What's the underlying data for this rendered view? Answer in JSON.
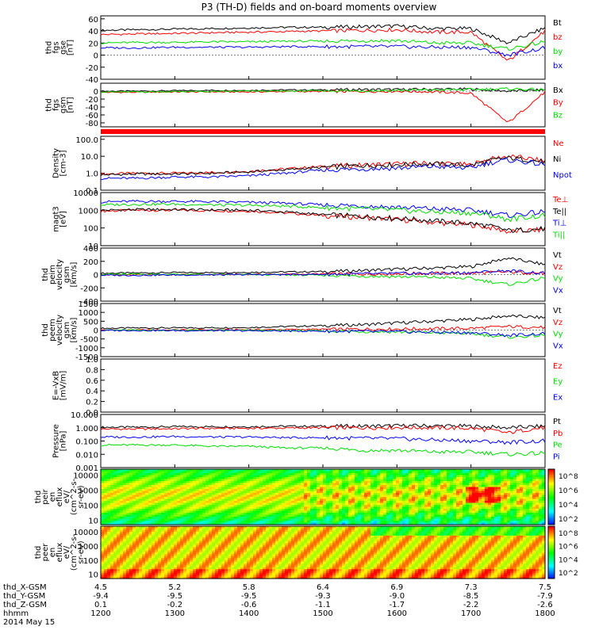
{
  "title": "P3 (TH-D) fields and on-board moments overview",
  "colors": {
    "black": "#000000",
    "red": "#ff0000",
    "green": "#00dd00",
    "blue": "#0000ff"
  },
  "chart_data": [
    {
      "type": "line",
      "panel": "fgs_gse",
      "ylabel_lines": [
        "thd",
        "fgs",
        "gse",
        "[nT]"
      ],
      "ylim": [
        -40,
        65
      ],
      "y_ticks": [
        "60",
        "40",
        "20",
        "0",
        "-20",
        "-40"
      ],
      "grid": false,
      "legend_placement": "right",
      "series": [
        {
          "name": "Bt",
          "color": "black",
          "values": [
            41,
            42,
            43,
            44,
            45,
            46,
            46,
            47,
            48,
            44,
            44,
            20,
            45
          ]
        },
        {
          "name": "bz",
          "color": "red",
          "values": [
            34,
            35,
            36,
            37,
            38,
            39,
            40,
            41,
            42,
            38,
            38,
            -10,
            40
          ]
        },
        {
          "name": "by",
          "color": "green",
          "values": [
            20,
            21,
            21,
            22,
            22,
            23,
            23,
            24,
            24,
            20,
            20,
            10,
            22
          ]
        },
        {
          "name": "bx",
          "color": "blue",
          "values": [
            12,
            12,
            13,
            13,
            13,
            14,
            14,
            14,
            14,
            13,
            13,
            0,
            12
          ]
        }
      ]
    },
    {
      "type": "line",
      "panel": "fgs_gsm",
      "ylabel_lines": [
        "thd",
        "fgs",
        "gsm",
        "[nT]"
      ],
      "ylim": [
        -90,
        20
      ],
      "y_ticks": [
        "0",
        "-20",
        "-40",
        "-60",
        "-80"
      ],
      "grid": false,
      "legend_placement": "right",
      "series": [
        {
          "name": "Bx",
          "color": "black",
          "values": [
            0,
            0,
            1,
            2,
            2,
            3,
            3,
            4,
            4,
            5,
            5,
            0,
            3
          ]
        },
        {
          "name": "By",
          "color": "red",
          "values": [
            -3,
            -3,
            -2,
            -2,
            -2,
            -1,
            -1,
            -1,
            0,
            -2,
            -5,
            -80,
            -2
          ]
        },
        {
          "name": "Bz",
          "color": "green",
          "values": [
            -2,
            -2,
            -1,
            -1,
            0,
            0,
            1,
            1,
            2,
            3,
            4,
            6,
            3
          ]
        }
      ]
    },
    {
      "type": "line",
      "panel": "density",
      "ylabel_lines": [
        "Density",
        "[cm-3]"
      ],
      "log_scale": true,
      "ylim": [
        0.1,
        150
      ],
      "y_ticks": [
        "100.0",
        "10.0",
        "1.0",
        "0.1"
      ],
      "grid": false,
      "legend_placement": "right",
      "series": [
        {
          "name": "Ne",
          "color": "red",
          "values": [
            0.9,
            1.0,
            1.0,
            1.1,
            1.3,
            1.8,
            2.5,
            3.0,
            3.5,
            4.0,
            3.0,
            10.0,
            5.0
          ]
        },
        {
          "name": "Ni",
          "color": "black",
          "values": [
            0.8,
            0.9,
            0.9,
            1.0,
            1.2,
            1.6,
            2.2,
            2.8,
            3.2,
            3.6,
            2.8,
            8.0,
            4.5
          ]
        },
        {
          "name": "Npot",
          "color": "blue",
          "values": [
            0.5,
            0.5,
            0.6,
            0.6,
            0.7,
            1.0,
            1.5,
            1.8,
            2.0,
            2.5,
            2.0,
            6.0,
            3.0
          ]
        }
      ]
    },
    {
      "type": "line",
      "panel": "temperature",
      "ylabel_lines": [
        "magt3",
        "[eV]"
      ],
      "log_scale": true,
      "ylim": [
        10,
        10000
      ],
      "y_ticks": [
        "10000",
        "1000",
        "100",
        "10"
      ],
      "grid": false,
      "legend_placement": "right",
      "series": [
        {
          "name": "Te⊥",
          "color": "red",
          "values": [
            900,
            1000,
            1000,
            950,
            900,
            700,
            500,
            400,
            300,
            200,
            150,
            60,
            80
          ]
        },
        {
          "name": "Te||",
          "color": "black",
          "values": [
            1000,
            1100,
            1100,
            1050,
            1000,
            800,
            550,
            450,
            350,
            250,
            180,
            70,
            90
          ]
        },
        {
          "name": "Ti⊥",
          "color": "blue",
          "values": [
            3000,
            3200,
            3200,
            3000,
            2800,
            2500,
            2000,
            1800,
            1500,
            1200,
            1000,
            500,
            800
          ]
        },
        {
          "name": "Ti||",
          "color": "green",
          "values": [
            2000,
            2200,
            2200,
            2000,
            1900,
            1700,
            1400,
            1200,
            1000,
            800,
            700,
            300,
            500
          ]
        }
      ]
    },
    {
      "type": "line",
      "panel": "peim_velocity",
      "ylabel_lines": [
        "thd",
        "peim",
        "velocity",
        "gsm",
        "[km/s]"
      ],
      "ylim": [
        -400,
        400
      ],
      "y_ticks": [
        "400",
        "200",
        "0",
        "-200",
        "-400"
      ],
      "grid": false,
      "legend_placement": "right",
      "series": [
        {
          "name": "Vt",
          "color": "black",
          "values": [
            20,
            25,
            30,
            30,
            35,
            40,
            45,
            60,
            80,
            100,
            120,
            250,
            150
          ]
        },
        {
          "name": "Vz",
          "color": "red",
          "values": [
            -5,
            -5,
            0,
            0,
            5,
            5,
            10,
            10,
            15,
            20,
            20,
            40,
            20
          ]
        },
        {
          "name": "Vy",
          "color": "green",
          "values": [
            5,
            5,
            5,
            0,
            0,
            -5,
            -10,
            -20,
            -30,
            -40,
            -60,
            -150,
            -50
          ]
        },
        {
          "name": "Vx",
          "color": "blue",
          "values": [
            -10,
            -10,
            -5,
            -5,
            0,
            0,
            5,
            10,
            15,
            20,
            30,
            60,
            20
          ]
        }
      ]
    },
    {
      "type": "line",
      "panel": "peem_velocity",
      "ylabel_lines": [
        "thd",
        "peem",
        "velocity",
        "gsm",
        "[km/s]"
      ],
      "ylim": [
        -1500,
        1500
      ],
      "y_ticks": [
        "1500",
        "1000",
        "500",
        "0",
        "-500",
        "-1000",
        "-1500"
      ],
      "grid": false,
      "legend_placement": "right",
      "series": [
        {
          "name": "Vt",
          "color": "black",
          "values": [
            100,
            120,
            120,
            130,
            150,
            200,
            250,
            300,
            400,
            500,
            600,
            800,
            700
          ]
        },
        {
          "name": "Vz",
          "color": "red",
          "values": [
            0,
            0,
            10,
            10,
            20,
            30,
            40,
            50,
            60,
            80,
            100,
            200,
            150
          ]
        },
        {
          "name": "Vy",
          "color": "green",
          "values": [
            0,
            -10,
            -10,
            -20,
            -20,
            -30,
            -50,
            -80,
            -100,
            -150,
            -200,
            -400,
            -300
          ]
        },
        {
          "name": "Vx",
          "color": "blue",
          "values": [
            -20,
            -20,
            -30,
            -30,
            -40,
            -50,
            -60,
            -80,
            -100,
            -120,
            -150,
            -300,
            -200
          ]
        }
      ]
    },
    {
      "type": "line",
      "panel": "efield",
      "ylabel_lines": [
        "E=-VxB",
        "[mV/m]"
      ],
      "ylim": [
        0,
        1
      ],
      "y_ticks": [
        "1.0",
        "0.8",
        "0.6",
        "0.4",
        "0.2",
        "0.0"
      ],
      "grid": false,
      "legend_placement": "right",
      "series": [
        {
          "name": "Ez",
          "color": "red",
          "values": []
        },
        {
          "name": "Ey",
          "color": "green",
          "values": []
        },
        {
          "name": "Ex",
          "color": "blue",
          "values": []
        }
      ]
    },
    {
      "type": "line",
      "panel": "pressure",
      "ylabel_lines": [
        "Pressure",
        "[nPa]"
      ],
      "log_scale": true,
      "ylim": [
        0.001,
        10
      ],
      "y_ticks": [
        "10.000",
        "1.000",
        "0.100",
        "0.010",
        "0.001"
      ],
      "grid": false,
      "legend_placement": "right",
      "series": [
        {
          "name": "Pt",
          "color": "black",
          "values": [
            1.1,
            1.1,
            1.2,
            1.2,
            1.2,
            1.3,
            1.3,
            1.3,
            1.4,
            1.4,
            1.3,
            1.0,
            1.3
          ]
        },
        {
          "name": "Pb",
          "color": "red",
          "values": [
            0.8,
            0.8,
            0.85,
            0.9,
            0.9,
            0.95,
            1.0,
            1.0,
            1.05,
            1.0,
            0.9,
            0.4,
            1.0
          ]
        },
        {
          "name": "Pe",
          "color": "green",
          "values": [
            0.05,
            0.05,
            0.05,
            0.04,
            0.04,
            0.03,
            0.03,
            0.02,
            0.02,
            0.015,
            0.015,
            0.01,
            0.012
          ]
        },
        {
          "name": "Pi",
          "color": "blue",
          "values": [
            0.2,
            0.2,
            0.22,
            0.2,
            0.2,
            0.18,
            0.18,
            0.16,
            0.15,
            0.12,
            0.1,
            0.08,
            0.1
          ]
        }
      ]
    },
    {
      "type": "heatmap",
      "panel": "peir_en_eflux",
      "ylabel_lines": [
        "thd",
        "peir",
        "en",
        "eflux",
        "eV/",
        "(cm^2-s-",
        "sr-eV)"
      ],
      "log_scale": true,
      "ylim": [
        5,
        25000
      ],
      "y_ticks": [
        "10000",
        "1000",
        "100",
        "10"
      ],
      "colorbar_ticks": [
        "10^8",
        "10^6",
        "10^4",
        "10^2"
      ]
    },
    {
      "type": "heatmap",
      "panel": "peer_en_eflux",
      "ylabel_lines": [
        "thd",
        "peer",
        "en",
        "eflux",
        "eV/",
        "(cm^2-s-",
        "sr-eV)"
      ],
      "log_scale": true,
      "ylim": [
        5,
        25000
      ],
      "y_ticks": [
        "10000",
        "1000",
        "100",
        "10"
      ],
      "colorbar_ticks": [
        "10^8",
        "10^6",
        "10^4",
        "10^2"
      ]
    }
  ],
  "time_axis": {
    "ticks": [
      "1200",
      "1300",
      "1400",
      "1500",
      "1600",
      "1700",
      "1800"
    ],
    "rows": [
      {
        "label": "thd_X-GSM",
        "values": [
          "4.5",
          "5.2",
          "5.8",
          "6.4",
          "6.9",
          "7.3",
          "7.5"
        ]
      },
      {
        "label": "thd_Y-GSM",
        "values": [
          "-9.4",
          "-9.5",
          "-9.5",
          "-9.3",
          "-9.0",
          "-8.5",
          "-7.9"
        ]
      },
      {
        "label": "thd_Z-GSM",
        "values": [
          "0.1",
          "-0.2",
          "-0.6",
          "-1.1",
          "-1.7",
          "-2.2",
          "-2.6"
        ]
      },
      {
        "label": "hhmm",
        "values": [
          "1200",
          "1300",
          "1400",
          "1500",
          "1600",
          "1700",
          "1800"
        ]
      }
    ],
    "date": "2014 May 15"
  }
}
